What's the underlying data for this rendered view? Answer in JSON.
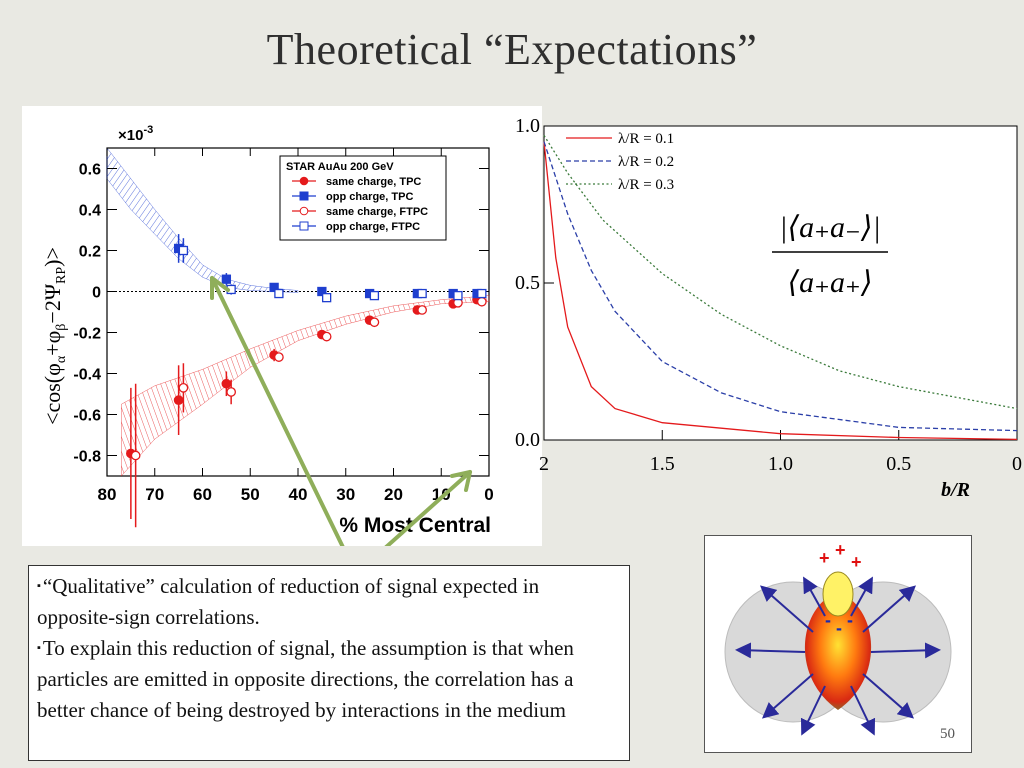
{
  "slide": {
    "title": "Theoretical “Expectations”",
    "page_number": "50",
    "bullets": [
      "“Qualitative” calculation of reduction of signal expected in opposite-sign correlations.",
      "To explain this reduction of signal, the assumption is that when particles are emitted in opposite directions, the correlation has a better chance of being destroyed by interactions in the medium"
    ],
    "bullet_marker": "▪",
    "inset": {
      "plus_labels": [
        "+",
        "+",
        "+"
      ],
      "minus_labels": [
        "-",
        "-",
        "-"
      ]
    }
  },
  "chart_data": [
    {
      "type": "scatter",
      "multiplier": "×10⁻³",
      "y_exponent_label": "×10",
      "y_exponent_power": "-3",
      "xlabel": "% Most Central",
      "ylabel_parts": [
        "<cos(φ",
        "α",
        "+φ",
        "β",
        "−2Ψ",
        "RP",
        ")>"
      ],
      "xlim": [
        80,
        0
      ],
      "ylim": [
        -0.9,
        0.7
      ],
      "x_ticks": [
        80,
        70,
        60,
        50,
        40,
        30,
        20,
        10,
        0
      ],
      "x_tick_labels": [
        "80",
        "70",
        "60",
        "50",
        "40",
        "30",
        "20",
        "10",
        "0"
      ],
      "y_ticks": [
        0.6,
        0.4,
        0.2,
        0,
        -0.2,
        -0.4,
        -0.6,
        -0.8
      ],
      "y_tick_labels": [
        "0.6",
        "0.4",
        "0.2",
        "0",
        "-0.2",
        "-0.4",
        "-0.6",
        "-0.8"
      ],
      "legend_title": "STAR  AuAu 200 GeV",
      "legend_position": "top-right",
      "series": [
        {
          "name": "same charge, TPC",
          "color": "#e41a1c",
          "marker": "filled-circle",
          "x": [
            75,
            65,
            55,
            45,
            35,
            25,
            15,
            7.5,
            2.5
          ],
          "y": [
            -0.79,
            -0.53,
            -0.45,
            -0.31,
            -0.21,
            -0.14,
            -0.09,
            -0.06,
            -0.04
          ],
          "err": [
            0.32,
            0.17,
            0.06,
            0.03,
            0.02,
            0.015,
            0.01,
            0.01,
            0.01
          ]
        },
        {
          "name": "opp charge, TPC",
          "color": "#1f3fcf",
          "marker": "filled-square",
          "x": [
            65,
            55,
            45,
            35,
            25,
            15,
            7.5,
            2.5
          ],
          "y": [
            0.21,
            0.06,
            0.02,
            0.0,
            -0.01,
            -0.01,
            -0.01,
            -0.01
          ],
          "err": [
            0.07,
            0.03,
            0.015,
            0.01,
            0.01,
            0.01,
            0.01,
            0.01
          ]
        },
        {
          "name": "same charge, FTPC",
          "color": "#e41a1c",
          "marker": "open-circle",
          "x": [
            74,
            64,
            54,
            44,
            34,
            24,
            14,
            6.5,
            1.5
          ],
          "y": [
            -0.8,
            -0.47,
            -0.49,
            -0.32,
            -0.22,
            -0.15,
            -0.09,
            -0.055,
            -0.05
          ],
          "err": [
            0.35,
            0.12,
            0.06,
            0.02,
            0.015,
            0.01,
            0.01,
            0.01,
            0.01
          ]
        },
        {
          "name": "opp charge, FTPC",
          "color": "#1f3fcf",
          "marker": "open-square",
          "x": [
            64,
            54,
            44,
            34,
            24,
            14,
            6.5,
            1.5
          ],
          "y": [
            0.2,
            0.01,
            -0.01,
            -0.03,
            -0.02,
            -0.01,
            -0.02,
            -0.01
          ],
          "err": [
            0.06,
            0.025,
            0.01,
            0.01,
            0.01,
            0.01,
            0.01,
            0.01
          ]
        }
      ],
      "bands": [
        {
          "color": "#e41a1c",
          "x": [
            77,
            70,
            60,
            50,
            40,
            30,
            20,
            10,
            0
          ],
          "upper": [
            -0.55,
            -0.46,
            -0.38,
            -0.28,
            -0.19,
            -0.12,
            -0.07,
            -0.04,
            -0.02
          ],
          "lower": [
            -0.95,
            -0.72,
            -0.55,
            -0.37,
            -0.24,
            -0.16,
            -0.1,
            -0.06,
            -0.05
          ]
        },
        {
          "color": "#1f3fcf",
          "x": [
            80,
            75,
            70,
            65,
            60,
            55,
            50,
            45,
            40
          ],
          "upper": [
            0.72,
            0.55,
            0.4,
            0.26,
            0.13,
            0.06,
            0.03,
            0.015,
            0.005
          ],
          "lower": [
            0.55,
            0.4,
            0.28,
            0.16,
            0.07,
            0.02,
            0.005,
            0.0,
            -0.005
          ]
        }
      ]
    },
    {
      "type": "line",
      "xlabel": "b/R",
      "xlim": [
        2,
        0
      ],
      "ylim": [
        0,
        1
      ],
      "x_ticks": [
        2,
        1.5,
        1,
        0.5,
        0
      ],
      "x_tick_labels": [
        "2",
        "1.5",
        "1.0",
        "0.5",
        "0"
      ],
      "y_ticks": [
        1,
        0.5,
        0
      ],
      "y_tick_labels": [
        "1.0",
        "0.5",
        "0.0"
      ],
      "formula": {
        "numerator": "|⟨a₊a₋⟩|",
        "denominator": "⟨a₊a₊⟩"
      },
      "legend_position": "top-left",
      "series": [
        {
          "name": "λ/R = 0.1",
          "lambda": 0.1,
          "color": "#e41a1c",
          "dash": "solid",
          "x": [
            2,
            1.95,
            1.9,
            1.8,
            1.7,
            1.5,
            1.0,
            0.5,
            0.0
          ],
          "y": [
            0.95,
            0.58,
            0.36,
            0.17,
            0.1,
            0.055,
            0.02,
            0.008,
            0.002
          ]
        },
        {
          "name": "λ/R = 0.2",
          "lambda": 0.2,
          "color": "#2b3fa8",
          "dash": "dashed",
          "x": [
            2,
            1.9,
            1.8,
            1.7,
            1.5,
            1.25,
            1.0,
            0.5,
            0.0
          ],
          "y": [
            0.95,
            0.72,
            0.54,
            0.41,
            0.25,
            0.15,
            0.09,
            0.04,
            0.03
          ]
        },
        {
          "name": "λ/R = 0.3",
          "lambda": 0.3,
          "color": "#3a7a3a",
          "dash": "dotted",
          "x": [
            2,
            1.9,
            1.75,
            1.5,
            1.25,
            1.0,
            0.75,
            0.5,
            0.0
          ],
          "y": [
            0.97,
            0.85,
            0.7,
            0.53,
            0.4,
            0.3,
            0.22,
            0.17,
            0.1
          ]
        }
      ]
    }
  ]
}
